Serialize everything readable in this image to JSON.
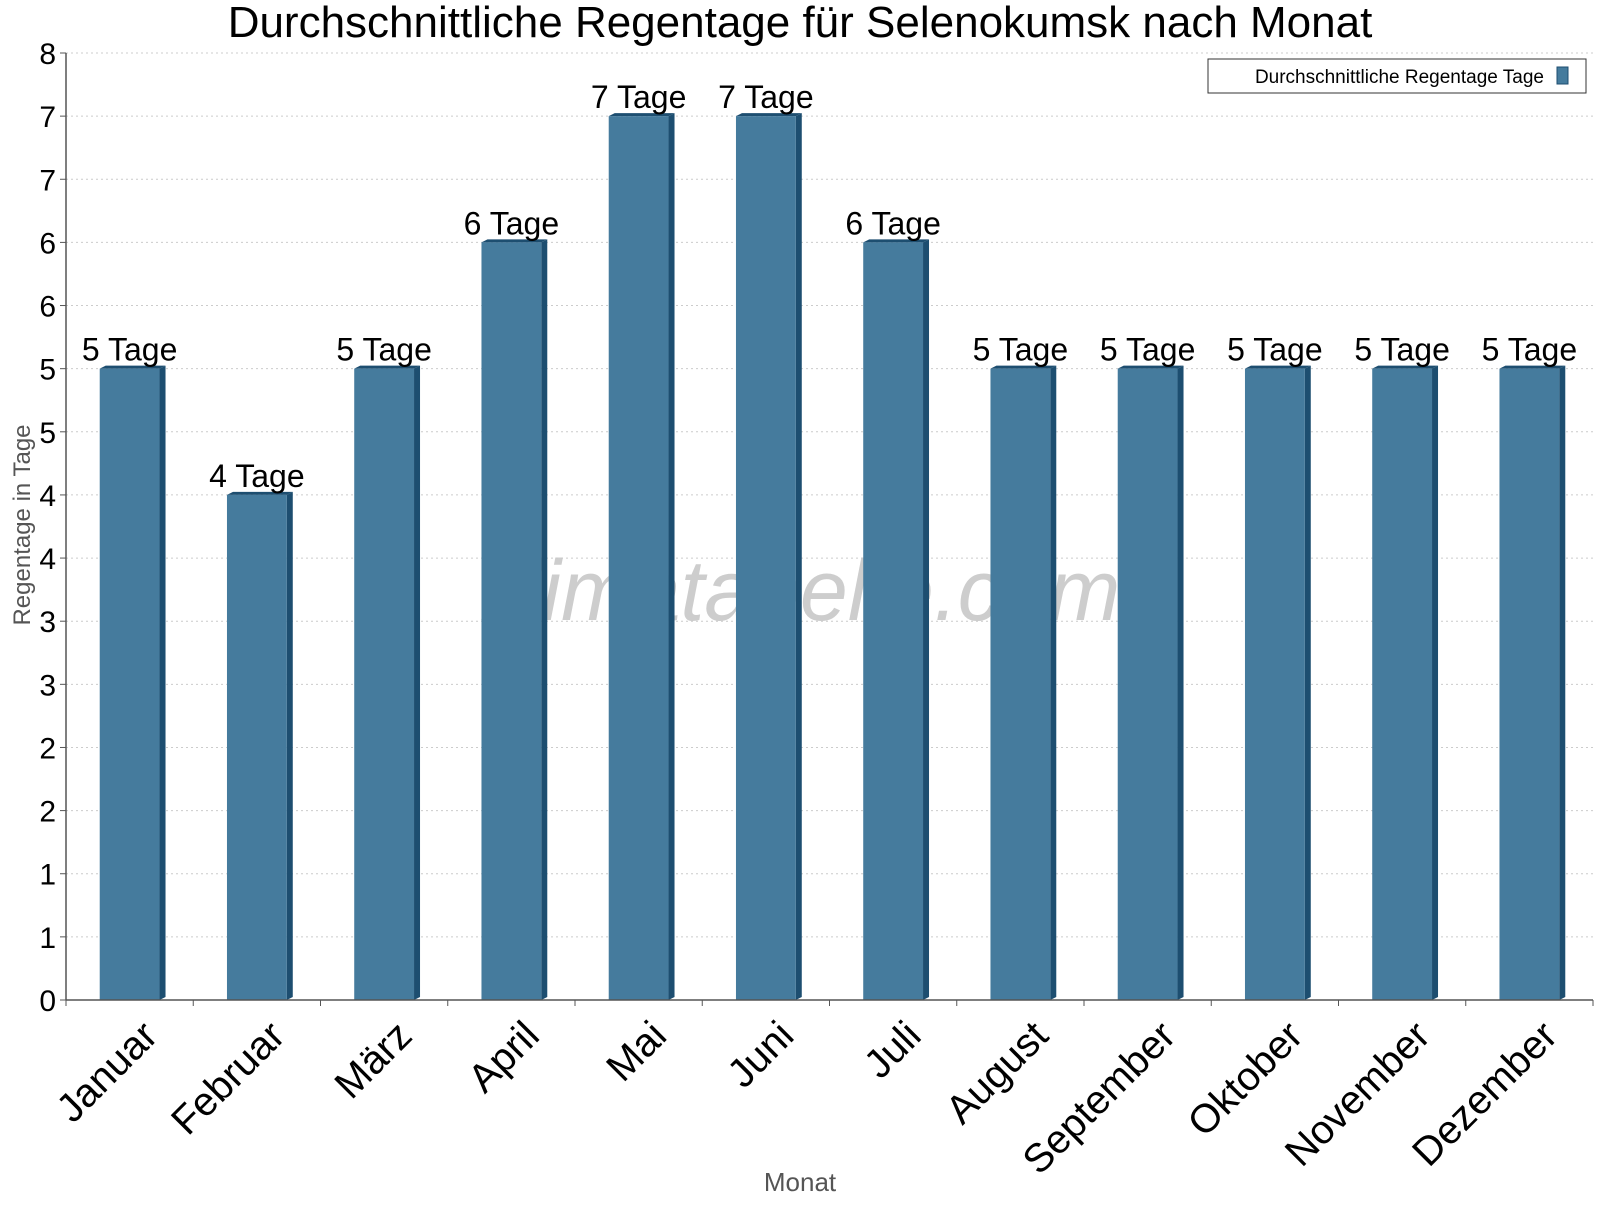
{
  "chart_data": {
    "type": "bar",
    "title": "Durchschnittliche Regentage für Selenokumsk nach Monat",
    "xlabel": "Monat",
    "ylabel": "Regentage in Tage",
    "categories": [
      "Januar",
      "Februar",
      "März",
      "April",
      "Mai",
      "Juni",
      "Juli",
      "August",
      "September",
      "Oktober",
      "November",
      "Dezember"
    ],
    "series": [
      {
        "name": "Durchschnittliche Regentage Tage",
        "values": [
          5,
          4,
          5,
          6,
          7,
          7,
          6,
          5,
          5,
          5,
          5,
          5
        ],
        "data_labels": [
          "5 Tage",
          "4 Tage",
          "5 Tage",
          "6 Tage",
          "7 Tage",
          "7 Tage",
          "6 Tage",
          "5 Tage",
          "5 Tage",
          "5 Tage",
          "5 Tage",
          "5 Tage"
        ]
      }
    ],
    "ylim": [
      0,
      7.5
    ],
    "yticks": [
      0,
      0.5,
      1,
      1.5,
      2,
      2.5,
      3,
      3.5,
      4,
      4.5,
      5,
      5.5,
      6,
      6.5,
      7,
      7.5
    ],
    "ytick_labels": [
      "0",
      "1",
      "1",
      "2",
      "2",
      "3",
      "3",
      "4",
      "4",
      "5",
      "5",
      "6",
      "6",
      "7",
      "7",
      "8"
    ],
    "grid": true,
    "legend_position": "top-right",
    "watermark": "klimatabelle.com",
    "colors": {
      "bar": "#457b9d",
      "bar_side": "#1d4e70",
      "bar_top": "#1d4e70",
      "grid": "#cccccc",
      "axis": "#555555",
      "text": "#000000",
      "axis_title": "#555555",
      "watermark": "#c8c8c8"
    }
  }
}
